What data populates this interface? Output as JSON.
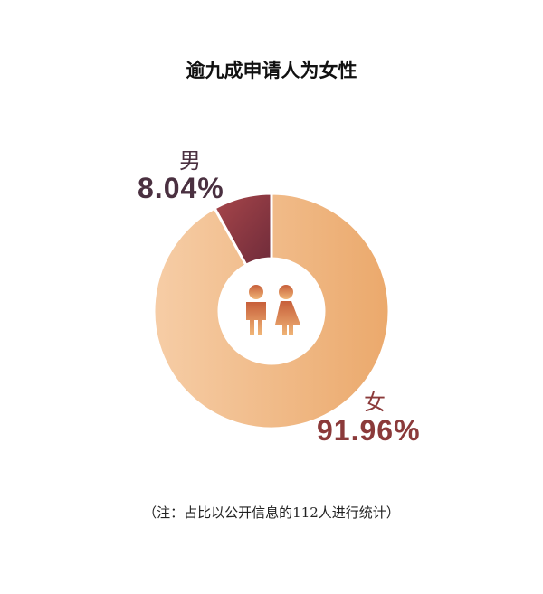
{
  "chart_data": {
    "type": "pie",
    "title": "逾九成申请人为女性",
    "categories": [
      "男",
      "女"
    ],
    "values": [
      8.04,
      91.96
    ],
    "value_labels": [
      "8.04%",
      "91.96%"
    ],
    "colors": [
      "#8e3b43",
      "#edb27a"
    ],
    "donut": true,
    "legend": "none"
  },
  "footnote": "（注：占比以公开信息的112人进行统计）",
  "icons": {
    "center": "people-icon"
  }
}
